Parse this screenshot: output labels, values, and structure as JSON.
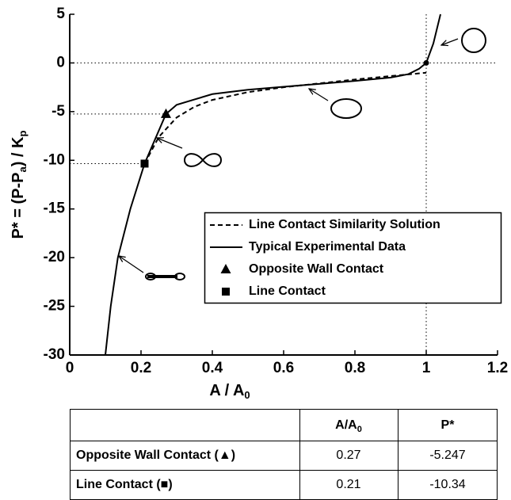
{
  "chart_data": {
    "type": "line",
    "xlabel": [
      "A / A",
      "0"
    ],
    "ylabel": [
      "P* = (P-P",
      "a",
      ") / K",
      "p"
    ],
    "xlim": [
      0,
      1.2
    ],
    "xticks": [
      0,
      0.2,
      0.4,
      0.6,
      0.8,
      1,
      1.2
    ],
    "ylim": [
      -30,
      5
    ],
    "yticks": [
      5,
      0,
      -5,
      -10,
      -15,
      -20,
      -25,
      -30
    ],
    "grid": false,
    "series": [
      {
        "name": "Line Contact Similarity Solution",
        "kind": "line",
        "dash": true,
        "color": "#000000",
        "x": [
          0.21,
          0.25,
          0.3,
          0.35,
          0.4,
          0.5,
          0.6,
          0.7,
          0.8,
          0.9,
          1
        ],
        "values": [
          -10.34,
          -7.6,
          -5.6,
          -4.5,
          -3.8,
          -3.0,
          -2.5,
          -2.1,
          -1.7,
          -1.35,
          -1.0
        ]
      },
      {
        "name": "Typical Experimental Data",
        "kind": "line",
        "dash": false,
        "color": "#000000",
        "x": [
          0.1,
          0.115,
          0.135,
          0.17,
          0.21,
          0.27,
          0.3,
          0.4,
          0.5,
          0.6,
          0.7,
          0.8,
          0.9,
          0.95,
          0.98,
          1,
          1.02,
          1.04
        ],
        "values": [
          -30,
          -25,
          -20,
          -15,
          -10.34,
          -5.247,
          -4.3,
          -3.2,
          -2.75,
          -2.45,
          -2.15,
          -1.85,
          -1.5,
          -1.15,
          -0.6,
          0,
          2,
          5
        ]
      },
      {
        "name": "Opposite Wall Contact",
        "kind": "triangle",
        "color": "#000000",
        "x": [
          0.27
        ],
        "values": [
          -5.247
        ]
      },
      {
        "name": "Line Contact",
        "kind": "square",
        "color": "#000000",
        "x": [
          0.21
        ],
        "values": [
          -10.34
        ]
      }
    ],
    "reference_point": {
      "x": 1,
      "y": 0
    }
  },
  "table": {
    "header": [
      "",
      [
        "A/A",
        "0"
      ],
      "P*"
    ],
    "rows": [
      [
        "Opposite Wall Contact (▲)",
        "0.27",
        "-5.247"
      ],
      [
        "Line Contact (■)",
        "0.21",
        "-10.34"
      ]
    ]
  }
}
